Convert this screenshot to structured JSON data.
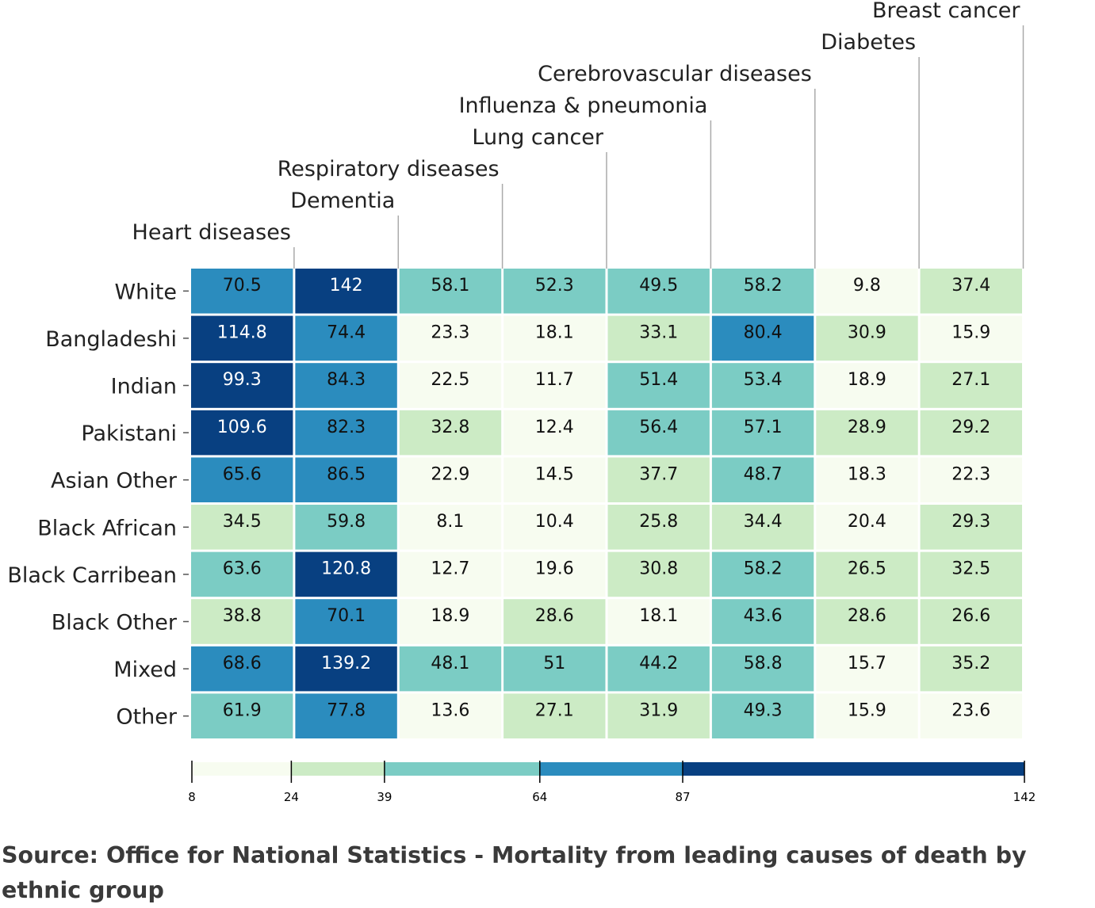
{
  "chart_data": {
    "type": "heatmap",
    "columns": [
      "Heart diseases",
      "Dementia",
      "Respiratory diseases",
      "Lung cancer",
      "Influenza & pneumonia",
      "Cerebrovascular diseases",
      "Diabetes",
      "Breast cancer"
    ],
    "rows": [
      "White",
      "Bangladeshi",
      "Indian",
      "Pakistani",
      "Asian Other",
      "Black African",
      "Black Carribean",
      "Black Other",
      "Mixed",
      "Other"
    ],
    "values": [
      [
        70.5,
        142,
        58.1,
        52.3,
        49.5,
        58.2,
        9.8,
        37.4
      ],
      [
        114.8,
        74.4,
        23.3,
        18.1,
        33.1,
        80.4,
        30.9,
        15.9
      ],
      [
        99.3,
        84.3,
        22.5,
        11.7,
        51.4,
        53.4,
        18.9,
        27.1
      ],
      [
        109.6,
        82.3,
        32.8,
        12.4,
        56.4,
        57.1,
        28.9,
        29.2
      ],
      [
        65.6,
        86.5,
        22.9,
        14.5,
        37.7,
        48.7,
        18.3,
        22.3
      ],
      [
        34.5,
        59.8,
        8.1,
        10.4,
        25.8,
        34.4,
        20.4,
        29.3
      ],
      [
        63.6,
        120.8,
        12.7,
        19.6,
        30.8,
        58.2,
        26.5,
        32.5
      ],
      [
        38.8,
        70.1,
        18.9,
        28.6,
        18.1,
        43.6,
        28.6,
        26.6
      ],
      [
        68.6,
        139.2,
        48.1,
        51,
        44.2,
        58.8,
        15.7,
        35.2
      ],
      [
        61.9,
        77.8,
        13.6,
        27.1,
        31.9,
        49.3,
        15.9,
        23.6
      ]
    ],
    "display_values": [
      [
        "70.5",
        "142",
        "58.1",
        "52.3",
        "49.5",
        "58.2",
        "9.8",
        "37.4"
      ],
      [
        "114.8",
        "74.4",
        "23.3",
        "18.1",
        "33.1",
        "80.4",
        "30.9",
        "15.9"
      ],
      [
        "99.3",
        "84.3",
        "22.5",
        "11.7",
        "51.4",
        "53.4",
        "18.9",
        "27.1"
      ],
      [
        "109.6",
        "82.3",
        "32.8",
        "12.4",
        "56.4",
        "57.1",
        "28.9",
        "29.2"
      ],
      [
        "65.6",
        "86.5",
        "22.9",
        "14.5",
        "37.7",
        "48.7",
        "18.3",
        "22.3"
      ],
      [
        "34.5",
        "59.8",
        "8.1",
        "10.4",
        "25.8",
        "34.4",
        "20.4",
        "29.3"
      ],
      [
        "63.6",
        "120.8",
        "12.7",
        "19.6",
        "30.8",
        "58.2",
        "26.5",
        "32.5"
      ],
      [
        "38.8",
        "70.1",
        "18.9",
        "28.6",
        "18.1",
        "43.6",
        "28.6",
        "26.6"
      ],
      [
        "68.6",
        "139.2",
        "48.1",
        "51",
        "44.2",
        "58.8",
        "15.7",
        "35.2"
      ],
      [
        "61.9",
        "77.8",
        "13.6",
        "27.1",
        "31.9",
        "49.3",
        "15.9",
        "23.6"
      ]
    ],
    "legend": {
      "thresholds": [
        8,
        24,
        39,
        64,
        87,
        142
      ],
      "tick_labels": [
        "8",
        "24",
        "39",
        "64",
        "87",
        "142"
      ],
      "colors": [
        "#f7fcf0",
        "#ccebc5",
        "#7bccc4",
        "#2b8cbe",
        "#084081"
      ],
      "placement": "bottom",
      "scale": "threshold"
    },
    "text_colors": {
      "dark": "#111111",
      "light": "#ffffff"
    },
    "grid": false
  },
  "source": {
    "text": "Source: Office for National Statistics - Mortality from leading causes of death by ethnic group"
  },
  "colors": {
    "axis": "#555555",
    "leader_line": "#aaaaaa",
    "label_text": "#222222",
    "source_text": "#3a3a3a"
  }
}
